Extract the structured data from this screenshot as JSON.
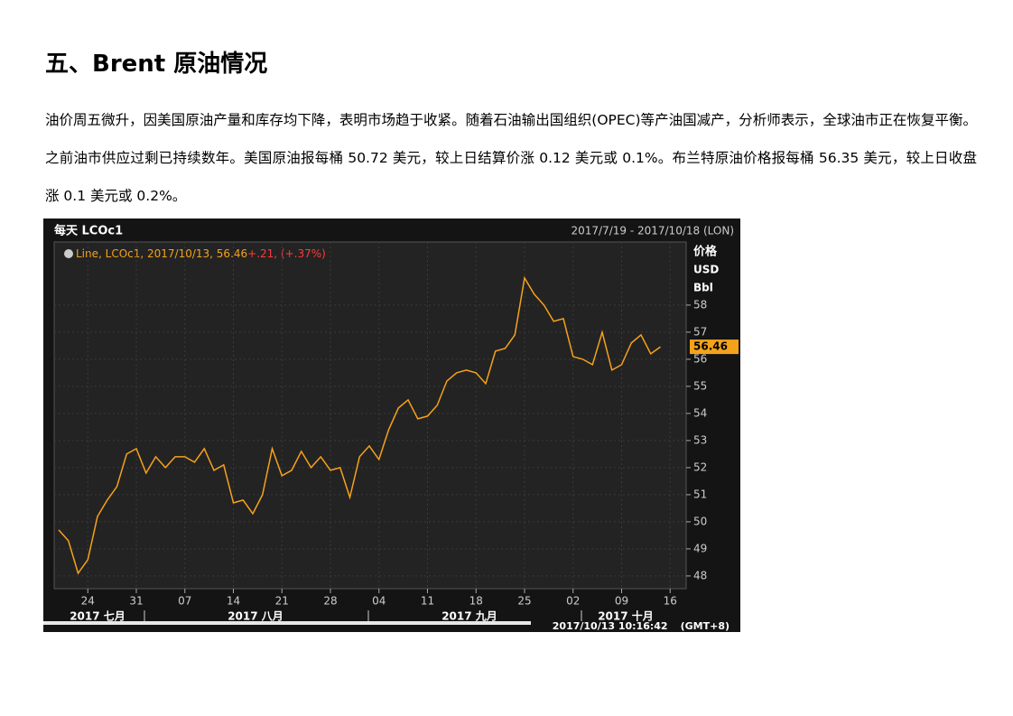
{
  "heading": "五、Brent 原油情况",
  "paragraph": "油价周五微升，因美国原油产量和库存均下降，表明市场趋于收紧。随着石油输出国组织(OPEC)等产油国减产，分析师表示，全球油市正在恢复平衡。之前油市供应过剩已持续数年。美国原油报每桶 50.72 美元，较上日结算价涨 0.12 美元或 0.1%。布兰特原油价格报每桶 56.35 美元，较上日收盘涨 0.1 美元或 0.2%。",
  "chart_data": {
    "type": "line",
    "title": "每天 LCOc1",
    "date_range": "2017/7/19 - 2017/10/18 (LON)",
    "legend": "Line, LCOc1, 2017/10/13, 56.46",
    "change": "+.21, (+.37%)",
    "y_label": [
      "价格",
      "USD",
      "Bbl"
    ],
    "color": "#f5a21b",
    "categories": [
      "2017-07-19",
      "2017-07-20",
      "2017-07-21",
      "2017-07-24",
      "2017-07-25",
      "2017-07-26",
      "2017-07-27",
      "2017-07-28",
      "2017-07-31",
      "2017-08-01",
      "2017-08-02",
      "2017-08-03",
      "2017-08-04",
      "2017-08-07",
      "2017-08-08",
      "2017-08-09",
      "2017-08-10",
      "2017-08-11",
      "2017-08-14",
      "2017-08-15",
      "2017-08-16",
      "2017-08-17",
      "2017-08-18",
      "2017-08-21",
      "2017-08-22",
      "2017-08-23",
      "2017-08-24",
      "2017-08-25",
      "2017-08-28",
      "2017-08-29",
      "2017-08-30",
      "2017-08-31",
      "2017-09-01",
      "2017-09-04",
      "2017-09-05",
      "2017-09-06",
      "2017-09-07",
      "2017-09-08",
      "2017-09-11",
      "2017-09-12",
      "2017-09-13",
      "2017-09-14",
      "2017-09-15",
      "2017-09-18",
      "2017-09-19",
      "2017-09-20",
      "2017-09-21",
      "2017-09-22",
      "2017-09-25",
      "2017-09-26",
      "2017-09-27",
      "2017-09-28",
      "2017-09-29",
      "2017-10-02",
      "2017-10-03",
      "2017-10-04",
      "2017-10-05",
      "2017-10-06",
      "2017-10-09",
      "2017-10-10",
      "2017-10-11",
      "2017-10-12",
      "2017-10-13"
    ],
    "values": [
      49.7,
      49.3,
      48.1,
      48.6,
      50.2,
      50.8,
      51.3,
      52.5,
      52.7,
      51.8,
      52.4,
      52.0,
      52.4,
      52.4,
      52.2,
      52.7,
      51.9,
      52.1,
      50.7,
      50.8,
      50.3,
      51.0,
      52.7,
      51.7,
      51.9,
      52.6,
      52.0,
      52.4,
      51.9,
      52.0,
      50.9,
      52.4,
      52.8,
      52.3,
      53.4,
      54.2,
      54.5,
      53.8,
      53.9,
      54.3,
      55.2,
      55.5,
      55.6,
      55.5,
      55.1,
      56.3,
      56.4,
      56.9,
      59.0,
      58.4,
      58.0,
      57.4,
      57.5,
      56.1,
      56.0,
      55.8,
      57.0,
      55.6,
      55.8,
      56.6,
      56.9,
      56.2,
      56.46
    ],
    "ylim": [
      47.53,
      60.33
    ],
    "yticks": [
      48,
      49,
      50,
      51,
      52,
      53,
      54,
      55,
      56,
      57,
      58
    ],
    "xticks": [
      {
        "value": "2017-07-24",
        "label": "24"
      },
      {
        "value": "2017-07-31",
        "label": "31"
      },
      {
        "value": "2017-08-07",
        "label": "07"
      },
      {
        "value": "2017-08-14",
        "label": "14"
      },
      {
        "value": "2017-08-21",
        "label": "21"
      },
      {
        "value": "2017-08-28",
        "label": "28"
      },
      {
        "value": "2017-09-04",
        "label": "04"
      },
      {
        "value": "2017-09-11",
        "label": "11"
      },
      {
        "value": "2017-09-18",
        "label": "18"
      },
      {
        "value": "2017-09-25",
        "label": "25"
      },
      {
        "value": "2017-10-02",
        "label": "02"
      },
      {
        "value": "2017-10-09",
        "label": "09"
      },
      {
        "value": "2017-10-16",
        "label": "16"
      }
    ],
    "months": [
      "2017 七月",
      "2017 八月",
      "2017 九月",
      "2017 十月"
    ],
    "timestamp": "2017/10/13 10:16:42",
    "timezone": "(GMT+8)",
    "grid": true
  }
}
